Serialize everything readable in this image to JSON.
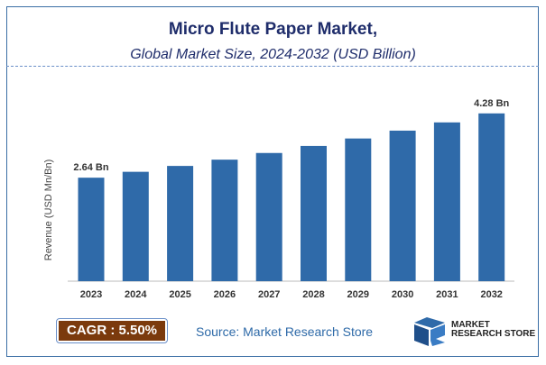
{
  "chart_data": {
    "type": "bar",
    "title": "Micro Flute Paper Market,",
    "subtitle": "Global Market Size, 2024-2032 (USD Billion)",
    "ylabel": "Revenue (USD Mn/Bn)",
    "xlabel": "",
    "categories": [
      "2023",
      "2024",
      "2025",
      "2026",
      "2027",
      "2028",
      "2029",
      "2030",
      "2031",
      "2032"
    ],
    "values": [
      2.64,
      2.79,
      2.94,
      3.1,
      3.27,
      3.45,
      3.64,
      3.84,
      4.05,
      4.28
    ],
    "data_labels": {
      "0": "2.64 Bn",
      "9": "4.28 Bn"
    },
    "ylim": [
      0,
      4.5
    ],
    "grid": false,
    "bar_color": "#2f6aa9"
  },
  "footer": {
    "cagr": "CAGR : 5.50%",
    "source": "Source: Market Research Store",
    "logo_text": [
      "MARKET",
      "RESEARCH STORE"
    ]
  }
}
